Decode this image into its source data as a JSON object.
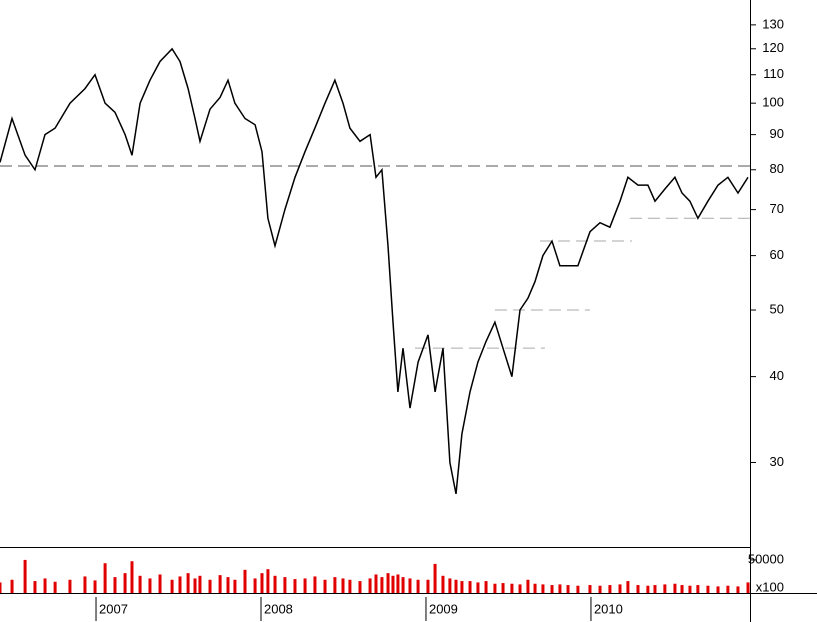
{
  "chart_data": [
    {
      "type": "line",
      "scale": "log",
      "color": "#000000",
      "x": [
        2006.418,
        2006.491,
        2006.57,
        2006.63,
        2006.691,
        2006.752,
        2006.842,
        2006.933,
        2006.994,
        2007.055,
        2007.115,
        2007.176,
        2007.218,
        2007.267,
        2007.327,
        2007.388,
        2007.461,
        2007.509,
        2007.558,
        2007.6,
        2007.63,
        2007.691,
        2007.752,
        2007.8,
        2007.842,
        2007.903,
        2007.964,
        2008.006,
        2008.042,
        2008.085,
        2008.145,
        2008.206,
        2008.267,
        2008.327,
        2008.388,
        2008.448,
        2008.497,
        2008.539,
        2008.6,
        2008.661,
        2008.697,
        2008.733,
        2008.77,
        2008.8,
        2008.83,
        2008.861,
        2008.903,
        2008.952,
        2009.012,
        2009.055,
        2009.103,
        2009.145,
        2009.182,
        2009.218,
        2009.267,
        2009.315,
        2009.364,
        2009.418,
        2009.467,
        2009.521,
        2009.57,
        2009.618,
        2009.661,
        2009.709,
        2009.764,
        2009.812,
        2009.861,
        2009.921,
        2009.994,
        2010.055,
        2010.115,
        2010.176,
        2010.224,
        2010.285,
        2010.345,
        2010.388,
        2010.448,
        2010.509,
        2010.552,
        2010.6,
        2010.648,
        2010.709,
        2010.77,
        2010.83,
        2010.891,
        2010.952
      ],
      "values": [
        82,
        95,
        84,
        80,
        90,
        92,
        100,
        105,
        110,
        100,
        97,
        90,
        84,
        100,
        108,
        115,
        120,
        115,
        105,
        95,
        88,
        98,
        102,
        108,
        100,
        95,
        93,
        85,
        68,
        62,
        70,
        78,
        85,
        92,
        100,
        108,
        100,
        92,
        88,
        90,
        78,
        80,
        62,
        48,
        38,
        44,
        36,
        42,
        46,
        38,
        44,
        30,
        27,
        33,
        38,
        42,
        45,
        48,
        44,
        40,
        50,
        52,
        55,
        60,
        63,
        58,
        58,
        58,
        65,
        67,
        66,
        72,
        78,
        76,
        76,
        72,
        75,
        78,
        74,
        72,
        68,
        72,
        76,
        78,
        74,
        78
      ],
      "xlim": [
        2006.418,
        2010.964
      ],
      "ylim": [
        22.6,
        141.3
      ],
      "yticks": [
        30,
        40,
        50,
        60,
        70,
        80,
        90,
        100,
        110,
        120,
        130
      ],
      "reference_lines": [
        {
          "value": 81,
          "x": [
            2006.418,
            2010.964
          ],
          "color": "#555555"
        },
        {
          "value": 44,
          "x": [
            2008.933,
            2009.721
          ],
          "color": "#aaaaaa"
        },
        {
          "value": 50,
          "x": [
            2009.418,
            2009.994
          ],
          "color": "#aaaaaa"
        },
        {
          "value": 63,
          "x": [
            2009.691,
            2010.248
          ],
          "color": "#aaaaaa"
        },
        {
          "value": 68,
          "x": [
            2010.236,
            2010.964
          ],
          "color": "#aaaaaa"
        }
      ]
    },
    {
      "type": "bar",
      "color": "#e00000",
      "unit_label": "x100",
      "x": [
        2006.418,
        2006.491,
        2006.57,
        2006.63,
        2006.691,
        2006.752,
        2006.842,
        2006.933,
        2006.994,
        2007.055,
        2007.115,
        2007.176,
        2007.218,
        2007.267,
        2007.327,
        2007.388,
        2007.461,
        2007.509,
        2007.558,
        2007.6,
        2007.63,
        2007.691,
        2007.752,
        2007.8,
        2007.842,
        2007.903,
        2007.964,
        2008.006,
        2008.042,
        2008.085,
        2008.145,
        2008.206,
        2008.267,
        2008.327,
        2008.388,
        2008.448,
        2008.497,
        2008.539,
        2008.6,
        2008.661,
        2008.697,
        2008.733,
        2008.77,
        2008.8,
        2008.83,
        2008.861,
        2008.903,
        2008.952,
        2009.012,
        2009.055,
        2009.103,
        2009.145,
        2009.182,
        2009.218,
        2009.267,
        2009.315,
        2009.364,
        2009.418,
        2009.467,
        2009.521,
        2009.57,
        2009.618,
        2009.661,
        2009.709,
        2009.764,
        2009.812,
        2009.861,
        2009.921,
        2009.994,
        2010.055,
        2010.115,
        2010.176,
        2010.224,
        2010.285,
        2010.345,
        2010.388,
        2010.448,
        2010.509,
        2010.552,
        2010.6,
        2010.648,
        2010.709,
        2010.77,
        2010.83,
        2010.891,
        2010.952
      ],
      "values": [
        16000,
        20000,
        50000,
        18000,
        22000,
        17000,
        20000,
        25000,
        19000,
        45000,
        24000,
        30000,
        48000,
        26000,
        22000,
        28000,
        20000,
        25000,
        30000,
        22000,
        26000,
        20000,
        27000,
        24000,
        20000,
        35000,
        22000,
        30000,
        36000,
        26000,
        24000,
        21000,
        22000,
        25000,
        20000,
        24000,
        22000,
        20000,
        18000,
        22000,
        28000,
        24000,
        30000,
        26000,
        28000,
        24000,
        22000,
        20000,
        20000,
        44000,
        26000,
        22000,
        20000,
        18000,
        18000,
        16000,
        18000,
        14000,
        15000,
        14000,
        13000,
        20000,
        14000,
        13000,
        12000,
        13000,
        12000,
        11000,
        12000,
        11000,
        12000,
        13000,
        18000,
        12000,
        11000,
        12000,
        13000,
        14000,
        12000,
        11000,
        12000,
        11000,
        10000,
        11000,
        10000,
        16000
      ],
      "xlim": [
        2006.418,
        2010.964
      ],
      "ylim": [
        0,
        68000
      ],
      "yticks": [
        50000
      ],
      "xticks": [
        2007,
        2008,
        2009,
        2010
      ]
    }
  ]
}
